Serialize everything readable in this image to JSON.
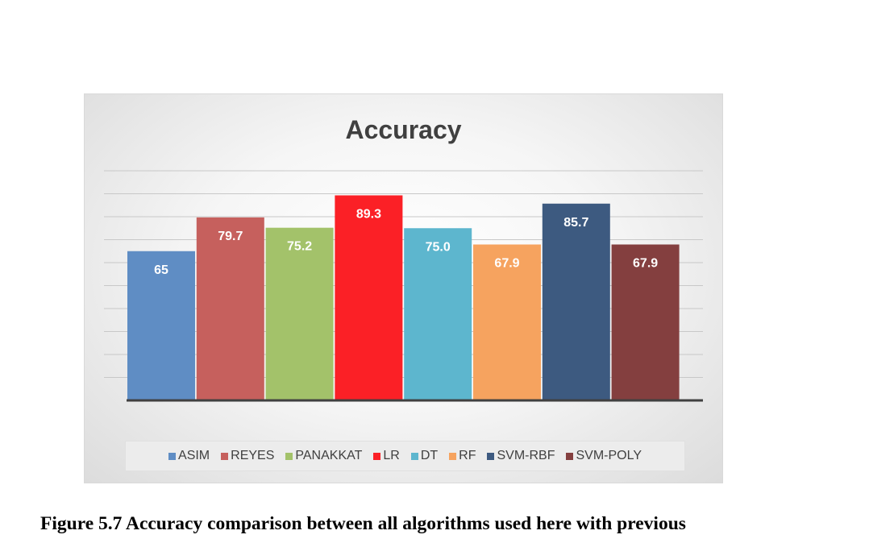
{
  "chart_data": {
    "type": "bar",
    "title": "Accuracy",
    "xlabel": "",
    "ylabel": "",
    "ylim": [
      0,
      100
    ],
    "grid": true,
    "legend_position": "bottom",
    "axis_labels_shown": false,
    "series": [
      {
        "name": "ASIM",
        "value": 65,
        "label": "65",
        "color": "#5f8dc4"
      },
      {
        "name": "REYES",
        "value": 79.7,
        "label": "79.7",
        "color": "#c6605d"
      },
      {
        "name": "PANAKKAT",
        "value": 75.2,
        "label": "75.2",
        "color": "#a3c26a"
      },
      {
        "name": "LR",
        "value": 89.3,
        "label": "89.3",
        "color": "#fb2026"
      },
      {
        "name": "DT",
        "value": 75.0,
        "label": "75.0",
        "color": "#5db6ce"
      },
      {
        "name": "RF",
        "value": 67.9,
        "label": "67.9",
        "color": "#f6a35f"
      },
      {
        "name": "SVM-RBF",
        "value": 85.7,
        "label": "85.7",
        "color": "#3d5a80"
      },
      {
        "name": "SVM-POLY",
        "value": 67.9,
        "label": "67.9",
        "color": "#843f3f"
      }
    ]
  },
  "caption": "Figure 5.7 Accuracy comparison between all algorithms used here with previous"
}
